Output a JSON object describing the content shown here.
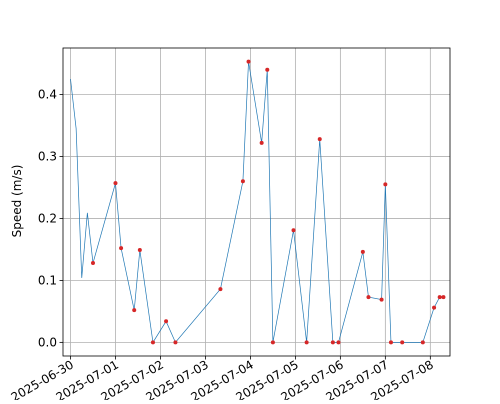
{
  "chart_data": {
    "type": "line",
    "title": "",
    "xlabel": "",
    "ylabel": "Speed (m/s)",
    "grid": true,
    "legend": "none",
    "line_color": "#1f77b4",
    "marker_color": "#d62728",
    "ylim": [
      -0.022,
      0.475
    ],
    "xlim": [
      "2025-06-29T20:00",
      "2025-07-08T10:30"
    ],
    "y_ticks": [
      0.0,
      0.1,
      0.2,
      0.3,
      0.4
    ],
    "y_tick_labels": [
      "0.0",
      "0.1",
      "0.2",
      "0.3",
      "0.4"
    ],
    "x_ticks": [
      "2025-06-30",
      "2025-07-01",
      "2025-07-02",
      "2025-07-03",
      "2025-07-04",
      "2025-07-05",
      "2025-07-06",
      "2025-07-07",
      "2025-07-08"
    ],
    "x_tick_labels": [
      "2025-06-30",
      "2025-07-01",
      "2025-07-02",
      "2025-07-03",
      "2025-07-04",
      "2025-07-05",
      "2025-07-06",
      "2025-07-07",
      "2025-07-08"
    ],
    "series": [
      {
        "x": [
          "2025-06-30T00:00",
          "2025-06-30T03:00",
          "2025-06-30T06:00",
          "2025-06-30T09:00",
          "2025-06-30T12:00",
          "2025-07-01T00:00",
          "2025-07-01T03:00",
          "2025-07-01T10:00",
          "2025-07-01T13:00",
          "2025-07-01T20:00",
          "2025-07-02T03:00",
          "2025-07-02T08:00",
          "2025-07-03T08:00",
          "2025-07-03T20:00",
          "2025-07-03T23:00",
          "2025-07-04T06:00",
          "2025-07-04T09:00",
          "2025-07-04T12:00",
          "2025-07-04T23:00",
          "2025-07-05T06:00",
          "2025-07-05T13:00",
          "2025-07-05T20:00",
          "2025-07-05T23:00",
          "2025-07-06T12:00",
          "2025-07-06T15:00",
          "2025-07-06T22:00",
          "2025-07-07T00:00",
          "2025-07-07T03:00",
          "2025-07-07T09:00",
          "2025-07-07T20:00",
          "2025-07-08T02:00",
          "2025-07-08T05:00",
          "2025-07-08T07:00"
        ],
        "y": [
          0.425,
          0.345,
          0.104,
          0.209,
          0.128,
          0.257,
          0.152,
          0.052,
          0.149,
          0.0,
          0.034,
          0.0,
          0.086,
          0.26,
          0.453,
          0.322,
          0.44,
          0.0,
          0.181,
          0.0,
          0.328,
          0.0,
          0.0,
          0.146,
          0.073,
          0.069,
          0.255,
          0.0,
          0.0,
          0.0,
          0.056,
          0.073,
          0.073
        ],
        "markers": [
          false,
          false,
          false,
          false,
          true,
          true,
          true,
          true,
          true,
          true,
          true,
          true,
          true,
          true,
          true,
          true,
          true,
          true,
          true,
          true,
          true,
          true,
          true,
          true,
          true,
          true,
          true,
          true,
          true,
          true,
          true,
          true,
          true
        ]
      }
    ]
  }
}
